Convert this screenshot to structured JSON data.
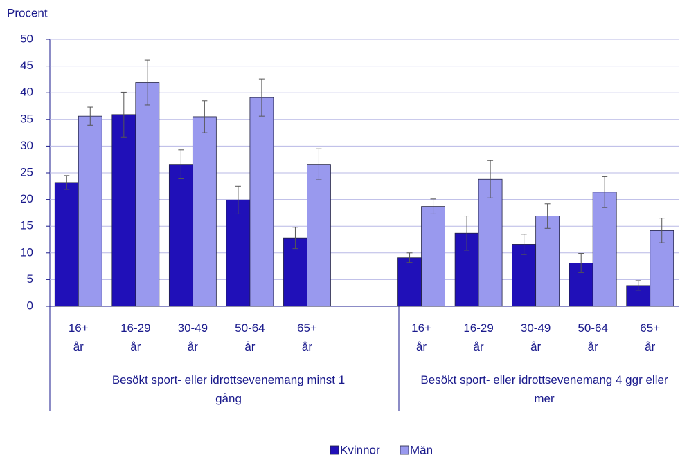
{
  "chart_data": {
    "type": "bar",
    "y_label": "Procent",
    "categories": [
      "16+ år",
      "16-29 år",
      "30-49 år",
      "50-64 år",
      "65+ år",
      null,
      "16+ år",
      "16-29 år",
      "30-49 år",
      "50-64 år",
      "65+ år"
    ],
    "groups": [
      "Besökt sport- eller idrottsevenemang minst 1 gång",
      "Besökt sport- eller idrottsevenemang 4 ggr eller mer"
    ],
    "series": [
      {
        "name": "Kvinnor",
        "color": "#2010b8",
        "values": [
          23.2,
          35.9,
          26.6,
          19.9,
          12.8,
          null,
          9.1,
          13.7,
          11.6,
          8.1,
          3.9
        ],
        "errors": [
          1.3,
          4.2,
          2.7,
          2.6,
          2.0,
          null,
          0.9,
          3.2,
          1.9,
          1.8,
          0.9
        ]
      },
      {
        "name": "Män",
        "color": "#9999ee",
        "values": [
          35.6,
          41.9,
          35.5,
          39.1,
          26.6,
          null,
          18.7,
          23.8,
          16.9,
          21.4,
          14.2
        ],
        "errors": [
          1.7,
          4.2,
          3.0,
          3.5,
          2.9,
          null,
          1.4,
          3.5,
          2.3,
          2.9,
          2.3
        ]
      }
    ],
    "ylim": [
      0,
      50
    ],
    "yticks": [
      0,
      5,
      10,
      15,
      20,
      25,
      30,
      35,
      40,
      45,
      50
    ],
    "grid": true
  }
}
